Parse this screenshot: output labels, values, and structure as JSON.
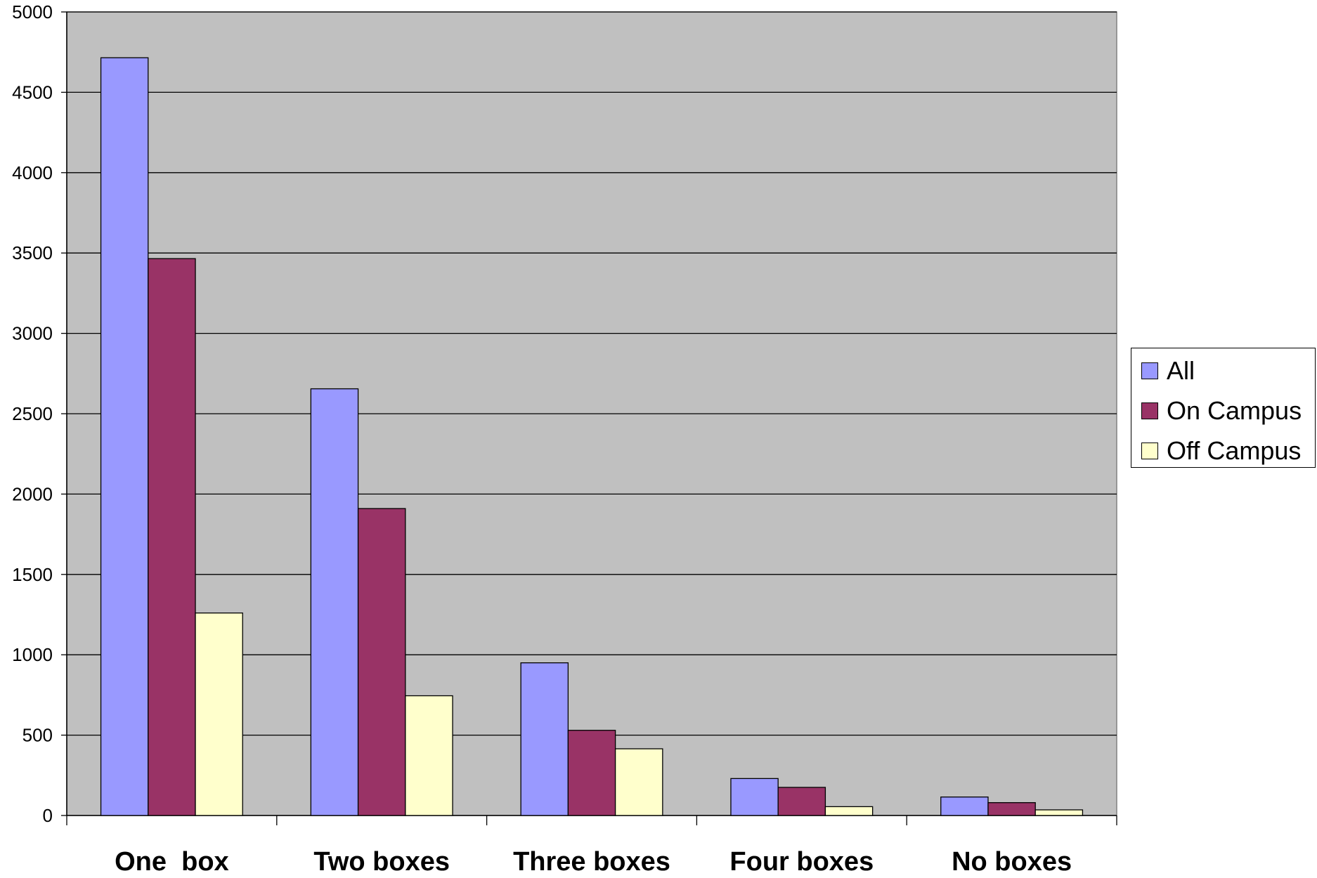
{
  "chart_data": {
    "type": "bar",
    "title": "",
    "xlabel": "",
    "ylabel": "",
    "categories": [
      "One  box",
      "Two boxes",
      "Three boxes",
      "Four boxes",
      "No boxes"
    ],
    "series": [
      {
        "name": "All",
        "color": "#9999FF",
        "values": [
          4715,
          2655,
          950,
          230,
          115
        ]
      },
      {
        "name": "On Campus",
        "color": "#993366",
        "values": [
          3465,
          1910,
          530,
          175,
          80
        ]
      },
      {
        "name": "Off Campus",
        "color": "#FFFFCC",
        "values": [
          1260,
          745,
          415,
          55,
          35
        ]
      }
    ],
    "ylim": [
      0,
      5000
    ],
    "yticks": [
      0,
      500,
      1000,
      1500,
      2000,
      2500,
      3000,
      3500,
      4000,
      4500,
      5000
    ],
    "grid": true,
    "plot_background": "#C0C0C0",
    "legend_position": "right"
  }
}
